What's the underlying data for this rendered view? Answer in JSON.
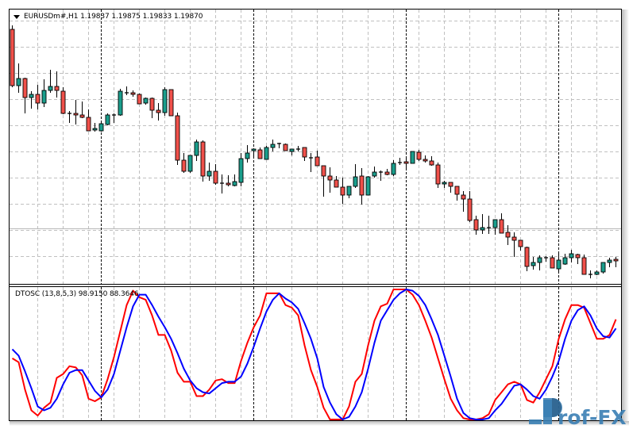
{
  "main_chart": {
    "symbol_header": "EURUSDm#,H1  1.19837 1.19875 1.19833 1.19870",
    "type": "candlestick",
    "bull_color": "#1a9e8c",
    "bear_color": "#f0504a",
    "ylim": [
      1.19784,
      1.20472
    ],
    "candles_ohlc": [
      [
        1.20426,
        1.20436,
        1.2028,
        1.20284
      ],
      [
        1.20284,
        1.2034,
        1.20266,
        1.20302
      ],
      [
        1.20302,
        1.20304,
        1.20214,
        1.20254
      ],
      [
        1.20254,
        1.2027,
        1.20226,
        1.20262
      ],
      [
        1.20262,
        1.20286,
        1.20224,
        1.2024
      ],
      [
        1.2024,
        1.203,
        1.2023,
        1.20272
      ],
      [
        1.20272,
        1.20324,
        1.20266,
        1.20282
      ],
      [
        1.20282,
        1.2032,
        1.20254,
        1.20272
      ],
      [
        1.2027,
        1.2028,
        1.20212,
        1.20214
      ],
      [
        1.20214,
        1.2022,
        1.2019,
        1.20214
      ],
      [
        1.20214,
        1.20248,
        1.20186,
        1.2021
      ],
      [
        1.2021,
        1.20244,
        1.20202,
        1.20204
      ],
      [
        1.20204,
        1.20224,
        1.2017,
        1.2017
      ],
      [
        1.20172,
        1.2019,
        1.20168,
        1.20176
      ],
      [
        1.2017,
        1.2019,
        1.20168,
        1.20188
      ],
      [
        1.20186,
        1.20214,
        1.20184,
        1.2021
      ],
      [
        1.2021,
        1.20214,
        1.2019,
        1.2021
      ],
      [
        1.2021,
        1.20276,
        1.20208,
        1.2027
      ],
      [
        1.20266,
        1.20282,
        1.2026,
        1.20266
      ],
      [
        1.20266,
        1.20272,
        1.20256,
        1.20262
      ],
      [
        1.20262,
        1.20264,
        1.20238,
        1.20238
      ],
      [
        1.2024,
        1.20254,
        1.20236,
        1.20252
      ],
      [
        1.20252,
        1.20254,
        1.20202,
        1.20222
      ],
      [
        1.20222,
        1.2024,
        1.20196,
        1.20216
      ],
      [
        1.20216,
        1.2028,
        1.20208,
        1.20274
      ],
      [
        1.20274,
        1.20274,
        1.20208,
        1.20208
      ],
      [
        1.20208,
        1.20216,
        1.20084,
        1.20096
      ],
      [
        1.20096,
        1.20114,
        1.20064,
        1.20068
      ],
      [
        1.20068,
        1.20108,
        1.20064,
        1.20108
      ],
      [
        1.20108,
        1.20148,
        1.20094,
        1.20142
      ],
      [
        1.20142,
        1.20146,
        1.20042,
        1.20056
      ],
      [
        1.20056,
        1.2009,
        1.20044,
        1.20068
      ],
      [
        1.20068,
        1.20086,
        1.20034,
        1.20038
      ],
      [
        1.20038,
        1.2006,
        1.20012,
        1.20038
      ],
      [
        1.20038,
        1.20058,
        1.2003,
        1.20034
      ],
      [
        1.20032,
        1.2006,
        1.2003,
        1.20042
      ],
      [
        1.2004,
        1.20114,
        1.2003,
        1.201
      ],
      [
        1.201,
        1.20134,
        1.2009,
        1.20114
      ],
      [
        1.2012,
        1.20126,
        1.20106,
        1.20124
      ],
      [
        1.20122,
        1.20128,
        1.201,
        1.201
      ],
      [
        1.20098,
        1.20132,
        1.20098,
        1.20128
      ],
      [
        1.20128,
        1.20148,
        1.20118,
        1.20136
      ],
      [
        1.20136,
        1.2014,
        1.20126,
        1.20138
      ],
      [
        1.20136,
        1.20138,
        1.2012,
        1.2012
      ],
      [
        1.20118,
        1.20124,
        1.20108,
        1.20124
      ],
      [
        1.20124,
        1.20132,
        1.20118,
        1.20124
      ],
      [
        1.20128,
        1.20128,
        1.20094,
        1.20104
      ],
      [
        1.20102,
        1.20114,
        1.20066,
        1.20102
      ],
      [
        1.20104,
        1.2012,
        1.20082,
        1.20082
      ],
      [
        1.20082,
        1.20082,
        1.20004,
        1.20056
      ],
      [
        1.20056,
        1.20078,
        1.20014,
        1.20046
      ],
      [
        1.20046,
        1.20056,
        1.20028,
        1.20028
      ],
      [
        1.20028,
        1.20052,
        1.19986,
        1.20008
      ],
      [
        1.20008,
        1.2003,
        1.2,
        1.2003
      ],
      [
        1.2003,
        1.20086,
        1.20026,
        1.20054
      ],
      [
        1.20056,
        1.20076,
        1.19984,
        1.20008
      ],
      [
        1.20008,
        1.20056,
        1.20008,
        1.20054
      ],
      [
        1.20056,
        1.2008,
        1.20052,
        1.20066
      ],
      [
        1.20066,
        1.2007,
        1.20044,
        1.20066
      ],
      [
        1.20066,
        1.20074,
        1.20058,
        1.2006
      ],
      [
        1.2006,
        1.20096,
        1.20056,
        1.20088
      ],
      [
        1.2009,
        1.20102,
        1.20084,
        1.2009
      ],
      [
        1.20092,
        1.20102,
        1.20074,
        1.20088
      ],
      [
        1.20088,
        1.20118,
        1.20088,
        1.20118
      ],
      [
        1.20116,
        1.20122,
        1.20094,
        1.20098
      ],
      [
        1.20098,
        1.20108,
        1.2009,
        1.20094
      ],
      [
        1.20094,
        1.20106,
        1.20082,
        1.20084
      ],
      [
        1.20084,
        1.2009,
        1.20026,
        1.20036
      ],
      [
        1.20036,
        1.20044,
        1.20026,
        1.2004
      ],
      [
        1.2004,
        1.2004,
        1.20014,
        1.2003
      ],
      [
        1.2003,
        1.2003,
        1.19994,
        1.2001
      ],
      [
        1.20008,
        1.20018,
        1.19966,
        1.19998
      ],
      [
        1.19998,
        1.20018,
        1.1994,
        1.19944
      ],
      [
        1.19946,
        1.19956,
        1.19908,
        1.1992
      ],
      [
        1.1992,
        1.1996,
        1.1991,
        1.19926
      ],
      [
        1.19926,
        1.19956,
        1.1991,
        1.19926
      ],
      [
        1.19926,
        1.19946,
        1.19908,
        1.19946
      ],
      [
        1.19946,
        1.19962,
        1.19912,
        1.19912
      ],
      [
        1.19914,
        1.19932,
        1.19882,
        1.19902
      ],
      [
        1.19902,
        1.19914,
        1.19852,
        1.19894
      ],
      [
        1.19894,
        1.19894,
        1.19868,
        1.19878
      ],
      [
        1.19876,
        1.19878,
        1.19816,
        1.19828
      ],
      [
        1.1983,
        1.19852,
        1.1982,
        1.19838
      ],
      [
        1.19838,
        1.19856,
        1.19818,
        1.1985
      ],
      [
        1.1985,
        1.19854,
        1.1984,
        1.1985
      ],
      [
        1.1985,
        1.19856,
        1.19824,
        1.19824
      ],
      [
        1.19822,
        1.1986,
        1.19814,
        1.19844
      ],
      [
        1.19834,
        1.1986,
        1.19832,
        1.1985
      ],
      [
        1.1985,
        1.1987,
        1.19838,
        1.1986
      ],
      [
        1.19858,
        1.1986,
        1.19834,
        1.1985
      ],
      [
        1.1985,
        1.19858,
        1.19808,
        1.19808
      ],
      [
        1.19808,
        1.19818,
        1.19798,
        1.19808
      ],
      [
        1.19808,
        1.19818,
        1.19806,
        1.19814
      ],
      [
        1.19814,
        1.19838,
        1.1981,
        1.19838
      ],
      [
        1.19838,
        1.1985,
        1.19826,
        1.19844
      ],
      [
        1.19846,
        1.19852,
        1.19826,
        1.19842
      ]
    ]
  },
  "indicator": {
    "label": "DTOSC (13,8,5,3) 98.9150 88.3646",
    "type": "line",
    "ylim": [
      0,
      100
    ],
    "series": [
      {
        "color": "#ff0000",
        "values": [
          47,
          44,
          23,
          7,
          3,
          9,
          13,
          32,
          35,
          41,
          40,
          34,
          16,
          14,
          17,
          31,
          48,
          68,
          88,
          99,
          94,
          92,
          80,
          65,
          65,
          53,
          36,
          29,
          29,
          18,
          18,
          23,
          30,
          31,
          28,
          28,
          45,
          59,
          71,
          80,
          97,
          97,
          97,
          88,
          86,
          80,
          57,
          38,
          25,
          9,
          0,
          0,
          0,
          10,
          29,
          35,
          57,
          76,
          87,
          89,
          100,
          100,
          100,
          96,
          88,
          76,
          63,
          47,
          31,
          16,
          7,
          1,
          0,
          0,
          1,
          4,
          15,
          21,
          27,
          29,
          27,
          15,
          13,
          21,
          31,
          41,
          62,
          77,
          88,
          88,
          86,
          74,
          62,
          62,
          65,
          77
        ]
      },
      {
        "color": "#0000ff",
        "values": [
          54,
          49,
          37,
          24,
          10,
          7,
          9,
          16,
          27,
          36,
          38,
          38,
          30,
          22,
          17,
          23,
          35,
          53,
          71,
          87,
          96,
          96,
          88,
          79,
          71,
          62,
          51,
          39,
          30,
          24,
          21,
          20,
          24,
          28,
          29,
          29,
          33,
          43,
          56,
          70,
          83,
          92,
          97,
          93,
          90,
          85,
          74,
          62,
          47,
          25,
          13,
          4,
          0,
          2,
          10,
          21,
          39,
          59,
          76,
          84,
          92,
          97,
          100,
          99,
          95,
          88,
          77,
          65,
          49,
          33,
          16,
          5,
          1,
          0,
          0,
          1,
          7,
          12,
          19,
          26,
          27,
          23,
          18,
          16,
          23,
          33,
          45,
          62,
          76,
          84,
          87,
          80,
          70,
          64,
          63,
          70
        ]
      }
    ]
  },
  "watermark": {
    "text": "Prof-FX",
    "color": "#3a7fb4"
  }
}
